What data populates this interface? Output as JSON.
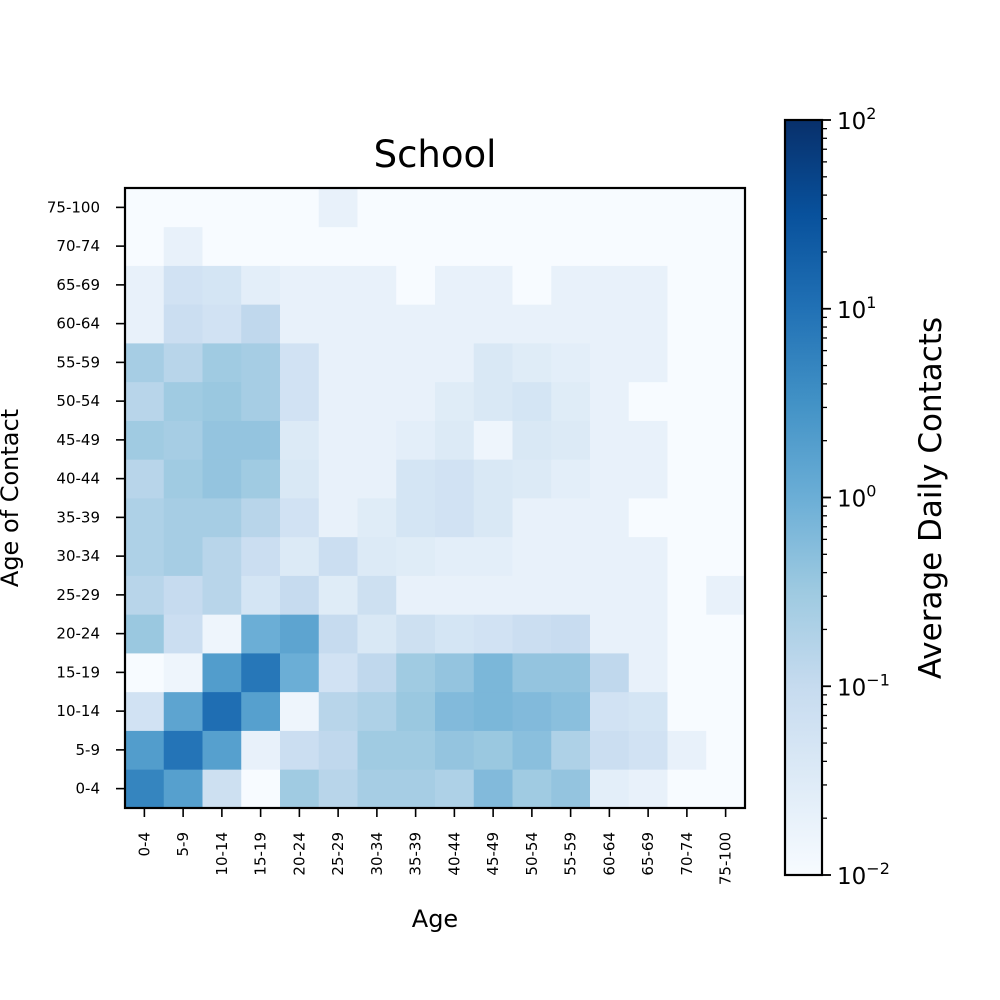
{
  "chart_data": {
    "type": "heatmap",
    "title": "School",
    "xlabel": "Age",
    "ylabel": "Age of Contact",
    "x_categories": [
      "0-4",
      "5-9",
      "10-14",
      "15-19",
      "20-24",
      "25-29",
      "30-34",
      "35-39",
      "40-44",
      "45-49",
      "50-54",
      "55-59",
      "60-64",
      "65-69",
      "70-74",
      "75-100"
    ],
    "y_categories": [
      "0-4",
      "5-9",
      "10-14",
      "15-19",
      "20-24",
      "25-29",
      "30-34",
      "35-39",
      "40-44",
      "45-49",
      "50-54",
      "55-59",
      "60-64",
      "65-69",
      "70-74",
      "75-100"
    ],
    "values": [
      [
        5.0,
        1.8,
        0.07,
        0.01,
        0.3,
        0.15,
        0.25,
        0.25,
        0.2,
        0.6,
        0.3,
        0.4,
        0.025,
        0.02,
        0.01,
        0.01
      ],
      [
        2.0,
        9.0,
        1.8,
        0.02,
        0.08,
        0.12,
        0.3,
        0.3,
        0.4,
        0.35,
        0.5,
        0.2,
        0.08,
        0.06,
        0.02,
        0.01
      ],
      [
        0.06,
        1.5,
        11.0,
        1.8,
        0.015,
        0.15,
        0.2,
        0.35,
        0.6,
        0.7,
        0.6,
        0.5,
        0.06,
        0.05,
        0.01,
        0.01
      ],
      [
        0.01,
        0.015,
        2.0,
        8.0,
        1.0,
        0.06,
        0.12,
        0.3,
        0.4,
        0.7,
        0.4,
        0.4,
        0.12,
        0.02,
        0.01,
        0.01
      ],
      [
        0.35,
        0.08,
        0.015,
        1.0,
        1.5,
        0.1,
        0.04,
        0.07,
        0.05,
        0.06,
        0.08,
        0.09,
        0.02,
        0.02,
        0.01,
        0.01
      ],
      [
        0.15,
        0.1,
        0.15,
        0.05,
        0.1,
        0.03,
        0.07,
        0.02,
        0.02,
        0.02,
        0.02,
        0.02,
        0.02,
        0.02,
        0.01,
        0.02
      ],
      [
        0.2,
        0.25,
        0.15,
        0.08,
        0.035,
        0.08,
        0.035,
        0.03,
        0.025,
        0.025,
        0.02,
        0.02,
        0.02,
        0.02,
        0.01,
        0.01
      ],
      [
        0.2,
        0.25,
        0.25,
        0.15,
        0.06,
        0.02,
        0.03,
        0.05,
        0.06,
        0.04,
        0.02,
        0.02,
        0.02,
        0.01,
        0.01,
        0.01
      ],
      [
        0.15,
        0.3,
        0.4,
        0.3,
        0.04,
        0.02,
        0.02,
        0.05,
        0.06,
        0.04,
        0.035,
        0.025,
        0.02,
        0.02,
        0.01,
        0.01
      ],
      [
        0.3,
        0.25,
        0.4,
        0.4,
        0.035,
        0.02,
        0.02,
        0.025,
        0.035,
        0.015,
        0.04,
        0.035,
        0.02,
        0.02,
        0.01,
        0.01
      ],
      [
        0.15,
        0.3,
        0.35,
        0.25,
        0.06,
        0.02,
        0.02,
        0.02,
        0.03,
        0.04,
        0.05,
        0.03,
        0.02,
        0.01,
        0.01,
        0.01
      ],
      [
        0.25,
        0.15,
        0.3,
        0.25,
        0.06,
        0.02,
        0.02,
        0.02,
        0.02,
        0.04,
        0.03,
        0.025,
        0.02,
        0.02,
        0.01,
        0.01
      ],
      [
        0.02,
        0.08,
        0.06,
        0.12,
        0.02,
        0.02,
        0.02,
        0.02,
        0.02,
        0.02,
        0.02,
        0.02,
        0.02,
        0.02,
        0.01,
        0.01
      ],
      [
        0.02,
        0.06,
        0.05,
        0.025,
        0.02,
        0.02,
        0.02,
        0.01,
        0.02,
        0.02,
        0.01,
        0.02,
        0.02,
        0.02,
        0.01,
        0.01
      ],
      [
        0.01,
        0.02,
        0.01,
        0.01,
        0.01,
        0.01,
        0.01,
        0.01,
        0.01,
        0.01,
        0.01,
        0.01,
        0.01,
        0.01,
        0.01,
        0.01
      ],
      [
        0.01,
        0.01,
        0.01,
        0.01,
        0.01,
        0.02,
        0.01,
        0.01,
        0.01,
        0.01,
        0.01,
        0.01,
        0.01,
        0.01,
        0.01,
        0.01
      ]
    ],
    "colorbar": {
      "label": "Average Daily Contacts",
      "scale": "log",
      "range": [
        0.01,
        100
      ],
      "colormap": "Blues",
      "ticks": [
        {
          "value": 0.01,
          "base": "10",
          "exp": "−2"
        },
        {
          "value": 0.1,
          "base": "10",
          "exp": "−1"
        },
        {
          "value": 1,
          "base": "10",
          "exp": "0"
        },
        {
          "value": 10,
          "base": "10",
          "exp": "1"
        },
        {
          "value": 100,
          "base": "10",
          "exp": "2"
        }
      ]
    },
    "colors": {
      "low": "#f7fbff",
      "high": "#08306b"
    }
  }
}
